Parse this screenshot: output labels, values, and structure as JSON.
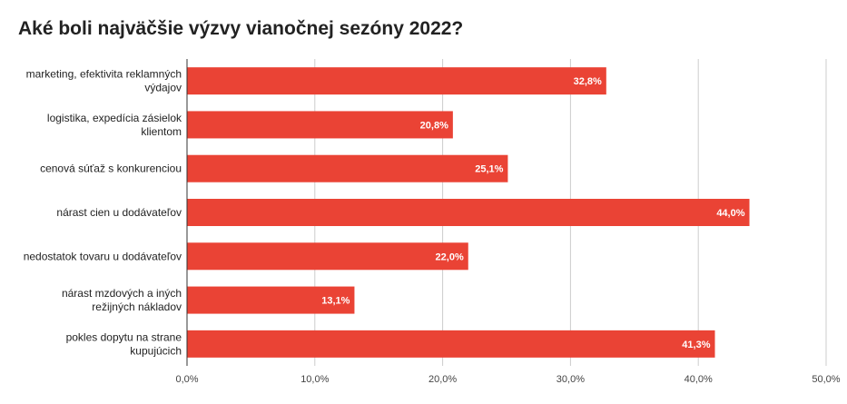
{
  "chart_data": {
    "type": "bar",
    "orientation": "horizontal",
    "title": "Aké boli najväčšie výzvy vianočnej sezóny 2022?",
    "categories": [
      [
        "marketing, efektivita reklamných",
        "výdajov"
      ],
      [
        "logistika, expedícia zásielok",
        "klientom"
      ],
      [
        "cenová súťaž s konkurenciou"
      ],
      [
        "nárast cien u dodávateľov"
      ],
      [
        "nedostatok tovaru u dodávateľov"
      ],
      [
        "nárast mzdových a iných",
        "režijných nákladov"
      ],
      [
        "pokles dopytu na strane",
        "kupujúcich"
      ]
    ],
    "values": [
      32.8,
      20.8,
      25.1,
      44.0,
      22.0,
      13.1,
      41.3
    ],
    "data_labels": [
      "32,8%",
      "20,8%",
      "25,1%",
      "44,0%",
      "22,0%",
      "13,1%",
      "41,3%"
    ],
    "xlim": [
      0,
      50
    ],
    "x_ticks": [
      0,
      10,
      20,
      30,
      40,
      50
    ],
    "x_tick_labels": [
      "0,0%",
      "10,0%",
      "20,0%",
      "30,0%",
      "40,0%",
      "50,0%"
    ],
    "xlabel": "",
    "ylabel": "",
    "grid": true,
    "legend": "none",
    "bar_color": "#ea4335",
    "grid_color": "#cccccc",
    "axis_color": "#333333"
  }
}
